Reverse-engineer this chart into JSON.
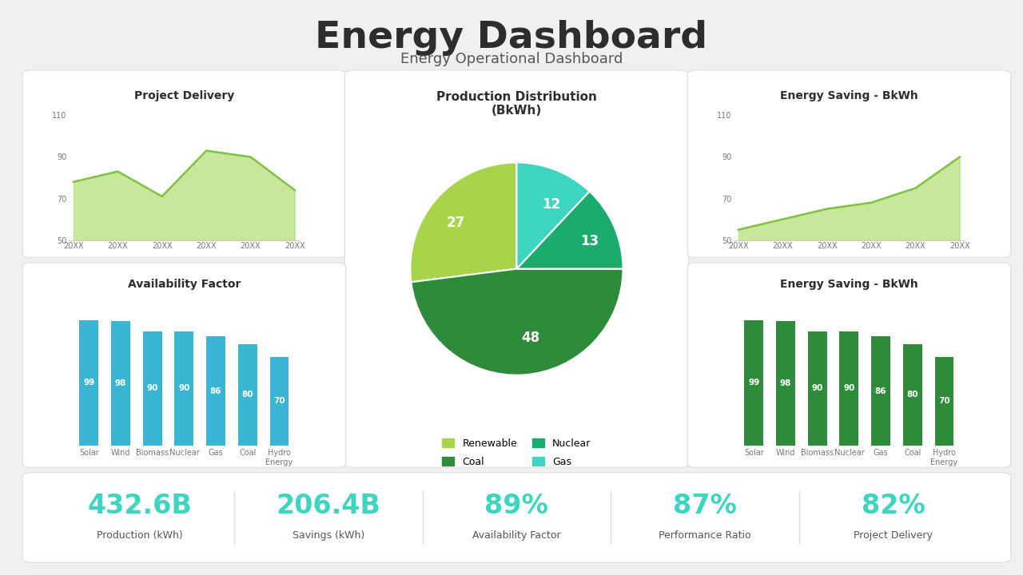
{
  "title": "Energy Dashboard",
  "subtitle": "Energy Operational Dashboard",
  "title_fontsize": 34,
  "subtitle_fontsize": 13,
  "bg_color": "#f0f0f0",
  "card_color": "#ffffff",
  "project_delivery": {
    "title": "Project Delivery",
    "x_labels": [
      "20XX",
      "20XX",
      "20XX",
      "20XX",
      "20XX",
      "20XX"
    ],
    "y_values": [
      78,
      83,
      71,
      93,
      90,
      74
    ],
    "ylim": [
      50,
      115
    ],
    "yticks": [
      50,
      70,
      90,
      110
    ],
    "line_color": "#7dc242",
    "fill_color": "#b8e07a"
  },
  "production_dist": {
    "title": "Production Distribution\n(BkWh)",
    "labels": [
      "Renewable",
      "Coal",
      "Nuclear",
      "Gas"
    ],
    "values": [
      27,
      48,
      13,
      12
    ],
    "colors": [
      "#a8d44a",
      "#2e8b3a",
      "#1aab6d",
      "#3dd5c0"
    ],
    "legend_labels": [
      "Renewable",
      "Coal",
      "Nuclear",
      "Gas"
    ]
  },
  "energy_saving_line": {
    "title": "Energy Saving - BkWh",
    "x_labels": [
      "20XX",
      "20XX",
      "20XX",
      "20XX",
      "20XX",
      "20XX"
    ],
    "y_values": [
      55,
      60,
      65,
      68,
      75,
      90
    ],
    "ylim": [
      50,
      115
    ],
    "yticks": [
      50,
      70,
      90,
      110
    ],
    "line_color": "#7dc242",
    "fill_color": "#b8e07a"
  },
  "availability_factor": {
    "title": "Availability Factor",
    "categories": [
      "Solar",
      "Wind",
      "Biomass",
      "Nuclear",
      "Gas",
      "Coal",
      "Hydro\nEnergy"
    ],
    "values": [
      99,
      98,
      90,
      90,
      86,
      80,
      70
    ],
    "bar_color": "#3ab5d4"
  },
  "energy_saving_bar": {
    "title": "Energy Saving - BkWh",
    "categories": [
      "Solar",
      "Wind",
      "Biomass",
      "Nuclear",
      "Gas",
      "Coal",
      "Hydro\nEnergy"
    ],
    "values": [
      99,
      98,
      90,
      90,
      86,
      80,
      70
    ],
    "bar_color": "#2e8b3a"
  },
  "stats": [
    {
      "value": "432.6B",
      "label": "Production (kWh)",
      "color": "#3dd5c0"
    },
    {
      "value": "206.4B",
      "label": "Savings (kWh)",
      "color": "#3dd5c0"
    },
    {
      "value": "89%",
      "label": "Availability Factor",
      "color": "#3dd5c0"
    },
    {
      "value": "87%",
      "label": "Performance Ratio",
      "color": "#3dd5c0"
    },
    {
      "value": "82%",
      "label": "Project Delivery",
      "color": "#3dd5c0"
    }
  ]
}
